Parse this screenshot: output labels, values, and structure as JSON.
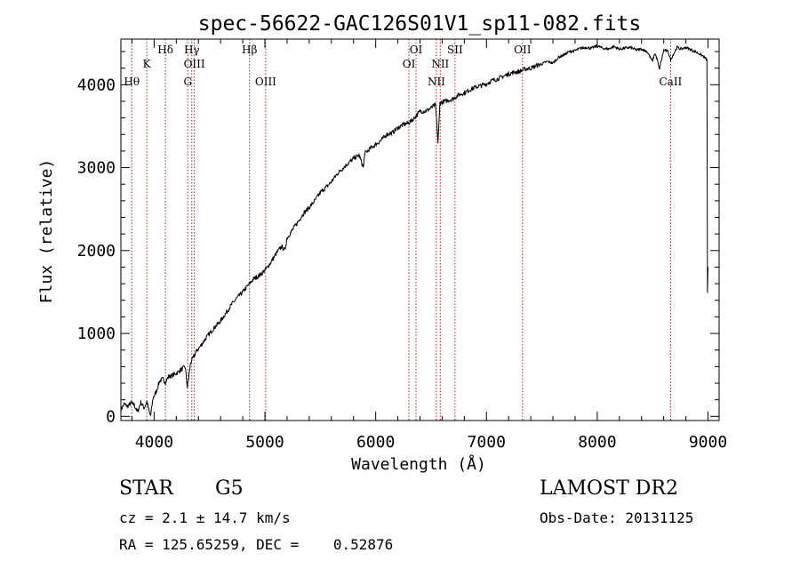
{
  "chart_data": {
    "type": "line",
    "title": "spec-56622-GAC126S01V1_sp11-082.fits",
    "xlabel": "Wavelength (Å)",
    "ylabel": "Flux (relative)",
    "xlim": [
      3700,
      9100
    ],
    "ylim": [
      -50,
      4550
    ],
    "xticks": [
      4000,
      5000,
      6000,
      7000,
      8000,
      9000
    ],
    "yticks": [
      0,
      1000,
      2000,
      3000,
      4000
    ],
    "xtick_labels": [
      "4000",
      "5000",
      "6000",
      "7000",
      "8000",
      "9000"
    ],
    "ytick_labels": [
      "0",
      "1000",
      "2000",
      "3000",
      "4000"
    ],
    "grid": false,
    "line_color": "#000000",
    "marker_color": "#b22222",
    "spectrum": {
      "x": [
        3700,
        3730,
        3760,
        3790,
        3820,
        3850,
        3880,
        3910,
        3935,
        3960,
        3969,
        3990,
        4020,
        4050,
        4080,
        4102,
        4130,
        4160,
        4200,
        4240,
        4280,
        4300,
        4330,
        4350,
        4380,
        4420,
        4460,
        4500,
        4550,
        4600,
        4650,
        4700,
        4750,
        4800,
        4861,
        4900,
        4950,
        5000,
        5050,
        5100,
        5150,
        5180,
        5200,
        5250,
        5300,
        5350,
        5400,
        5450,
        5500,
        5550,
        5600,
        5650,
        5700,
        5750,
        5800,
        5850,
        5890,
        5900,
        5950,
        6000,
        6050,
        6100,
        6150,
        6200,
        6250,
        6300,
        6350,
        6400,
        6450,
        6500,
        6540,
        6563,
        6580,
        6600,
        6650,
        6700,
        6750,
        6800,
        6850,
        6900,
        6950,
        7000,
        7050,
        7100,
        7150,
        7200,
        7250,
        7300,
        7350,
        7400,
        7450,
        7500,
        7550,
        7600,
        7650,
        7700,
        7750,
        7800,
        7850,
        7900,
        7950,
        8000,
        8050,
        8100,
        8150,
        8200,
        8250,
        8300,
        8350,
        8400,
        8450,
        8498,
        8520,
        8542,
        8560,
        8600,
        8640,
        8662,
        8680,
        8720,
        8760,
        8800,
        8850,
        8900,
        8960,
        8990,
        8995,
        9000
      ],
      "y": [
        80,
        150,
        120,
        160,
        140,
        50,
        170,
        100,
        180,
        30,
        10,
        220,
        300,
        430,
        450,
        410,
        480,
        490,
        520,
        560,
        600,
        350,
        650,
        700,
        780,
        850,
        930,
        1000,
        1080,
        1150,
        1250,
        1350,
        1430,
        1500,
        1600,
        1660,
        1700,
        1760,
        1850,
        1960,
        2050,
        2000,
        2150,
        2250,
        2350,
        2450,
        2520,
        2600,
        2700,
        2760,
        2830,
        2920,
        2990,
        3050,
        3110,
        3150,
        3000,
        3170,
        3230,
        3280,
        3330,
        3400,
        3420,
        3480,
        3520,
        3540,
        3600,
        3680,
        3680,
        3720,
        3760,
        3300,
        3780,
        3790,
        3810,
        3830,
        3880,
        3900,
        3940,
        3970,
        3990,
        4010,
        4050,
        4070,
        4100,
        4130,
        4150,
        4160,
        4190,
        4200,
        4230,
        4250,
        4280,
        4260,
        4330,
        4360,
        4400,
        4410,
        4440,
        4450,
        4440,
        4470,
        4440,
        4430,
        4460,
        4430,
        4440,
        4450,
        4420,
        4430,
        4400,
        4280,
        4380,
        4300,
        4180,
        4420,
        4400,
        4300,
        4350,
        4450,
        4430,
        4450,
        4420,
        4390,
        4340,
        4300,
        1500,
        1800
      ]
    },
    "lines": {
      "x": [
        3798,
        3934,
        4102,
        4304,
        4340,
        4363,
        4861,
        5007,
        6300,
        6364,
        6548,
        6583,
        6716,
        7325,
        8662
      ],
      "labels": [
        "Hθ",
        "K",
        "Hδ",
        "G",
        "Hγ",
        "OIII",
        "Hβ",
        "OIII",
        "OI",
        "OI",
        "NII",
        "NII",
        "SII",
        "OII",
        "CaII"
      ],
      "row": [
        2,
        1,
        3,
        2,
        0,
        1,
        3,
        2,
        1,
        3,
        2,
        1,
        3,
        3,
        2
      ]
    }
  },
  "info": {
    "class": "STAR",
    "subclass": "G5",
    "survey": "LAMOST DR2",
    "cz": "cz = 2.1 ± 14.7 km/s",
    "obs_date": "Obs-Date: 20131125",
    "radec": "RA = 125.65259, DEC =    0.52876"
  }
}
